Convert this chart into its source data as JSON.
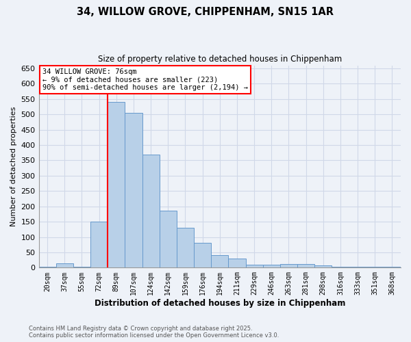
{
  "title": "34, WILLOW GROVE, CHIPPENHAM, SN15 1AR",
  "subtitle": "Size of property relative to detached houses in Chippenham",
  "xlabel": "Distribution of detached houses by size in Chippenham",
  "ylabel": "Number of detached properties",
  "categories": [
    "20sqm",
    "37sqm",
    "55sqm",
    "72sqm",
    "89sqm",
    "107sqm",
    "124sqm",
    "142sqm",
    "159sqm",
    "176sqm",
    "194sqm",
    "211sqm",
    "229sqm",
    "246sqm",
    "263sqm",
    "281sqm",
    "298sqm",
    "316sqm",
    "333sqm",
    "351sqm",
    "368sqm"
  ],
  "values": [
    3,
    15,
    3,
    150,
    540,
    505,
    370,
    185,
    130,
    80,
    40,
    30,
    10,
    10,
    12,
    12,
    8,
    3,
    3,
    2,
    3
  ],
  "bar_color": "#b8d0e8",
  "bar_edge_color": "#6699cc",
  "vline_x_index": 4,
  "vline_color": "red",
  "annotation_text": "34 WILLOW GROVE: 76sqm\n← 9% of detached houses are smaller (223)\n90% of semi-detached houses are larger (2,194) →",
  "annotation_box_color": "white",
  "annotation_box_edge": "red",
  "ylim": [
    0,
    660
  ],
  "yticks": [
    0,
    50,
    100,
    150,
    200,
    250,
    300,
    350,
    400,
    450,
    500,
    550,
    600,
    650
  ],
  "footer_line1": "Contains HM Land Registry data © Crown copyright and database right 2025.",
  "footer_line2": "Contains public sector information licensed under the Open Government Licence v3.0.",
  "background_color": "#eef2f8",
  "grid_color": "#d0d8e8"
}
